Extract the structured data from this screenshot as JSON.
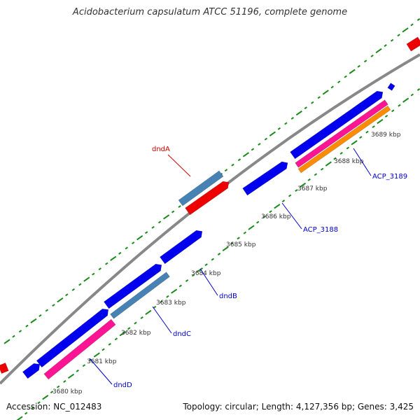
{
  "title": "Acidobacterium capsulatum ATCC 51196, complete genome",
  "footer": {
    "accession": "Accession: NC_012483",
    "summary": "Topology: circular; Length: 4,127,356 bp; Genes: 3,425"
  },
  "colors": {
    "backbone": "#888888",
    "gene_cds": "#0000ee",
    "gene_red": "#ee0000",
    "gene_steelblue": "#4682b4",
    "gene_pink": "#ff1493",
    "gene_orange": "#ff8c00",
    "ticks": "#1a8a1a",
    "tick_label": "#333333",
    "label_blue": "#0000cc",
    "label_red": "#cc0000"
  },
  "ticks": [
    {
      "label": "3680 kbp"
    },
    {
      "label": "3681 kbp"
    },
    {
      "label": "3682 kbp"
    },
    {
      "label": "3683 kbp"
    },
    {
      "label": "3684 kbp"
    },
    {
      "label": "3685 kbp"
    },
    {
      "label": "3686 kbp"
    },
    {
      "label": "3687 kbp"
    },
    {
      "label": "3688 kbp"
    },
    {
      "label": "3689 kbp"
    }
  ],
  "gene_labels": [
    {
      "text": "dndA",
      "color": "red"
    },
    {
      "text": "ACP_3189",
      "color": "blue"
    },
    {
      "text": "ACP_3188",
      "color": "blue"
    },
    {
      "text": "dndB",
      "color": "blue"
    },
    {
      "text": "dndC",
      "color": "blue"
    },
    {
      "text": "dndD",
      "color": "blue"
    }
  ]
}
